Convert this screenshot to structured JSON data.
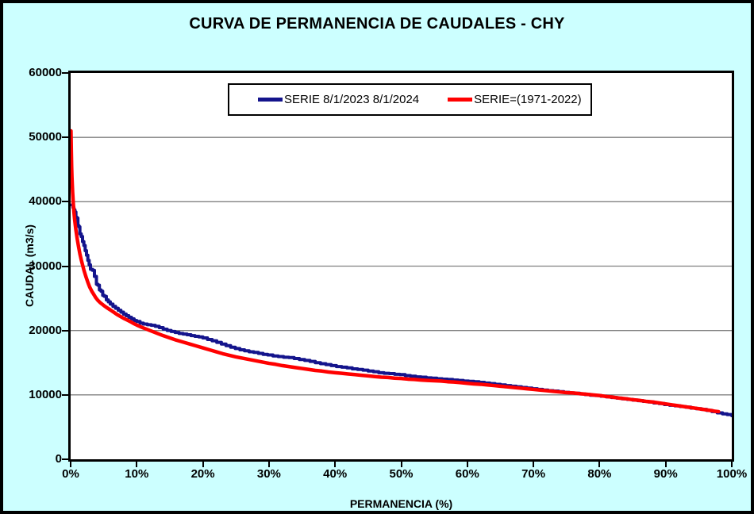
{
  "window": {
    "title": "CURVA DE PERMANENCIA DE CAUDALES - CHY"
  },
  "colors": {
    "background": "#CCFFFF",
    "plot_background": "#FFFFFF",
    "gridline": "#808080",
    "frame": "#000000",
    "series1": "#14148C",
    "series2": "#FF0000"
  },
  "chart_data": {
    "type": "line",
    "title": "CURVA DE PERMANENCIA DE CAUDALES - CHY",
    "xlabel": "PERMANENCIA (%)",
    "ylabel": "CAUDAL (m3/s)",
    "xlim": [
      0,
      100
    ],
    "ylim": [
      0,
      60000
    ],
    "x_tick_values": [
      0,
      10,
      20,
      30,
      40,
      50,
      60,
      70,
      80,
      90,
      100
    ],
    "x_tick_labels": [
      "0%",
      "10%",
      "20%",
      "30%",
      "40%",
      "50%",
      "60%",
      "70%",
      "80%",
      "90%",
      "100%"
    ],
    "y_tick_values": [
      0,
      10000,
      20000,
      30000,
      40000,
      50000,
      60000
    ],
    "y_tick_labels": [
      "0",
      "10000",
      "20000",
      "30000",
      "40000",
      "50000",
      "60000"
    ],
    "grid": "horizontal-only",
    "legend": {
      "position": "top-center",
      "entries": [
        {
          "label": "SERIE 8/1/2023 8/1/2024",
          "color": "#14148C"
        },
        {
          "label": "SERIE=(1971-2022)",
          "color": "#FF0000"
        }
      ]
    },
    "series": [
      {
        "name": "SERIE 8/1/2023 8/1/2024",
        "color": "#14148C",
        "style": "stepped",
        "stroke_width": 4,
        "points": [
          [
            0.2,
            39500
          ],
          [
            0.35,
            39100
          ],
          [
            0.5,
            38750
          ],
          [
            0.65,
            38400
          ],
          [
            0.8,
            37600
          ],
          [
            0.95,
            37450
          ],
          [
            1.1,
            36300
          ],
          [
            1.25,
            36100
          ],
          [
            1.4,
            35000
          ],
          [
            1.6,
            34600
          ],
          [
            1.8,
            33800
          ],
          [
            2.0,
            33200
          ],
          [
            2.2,
            32400
          ],
          [
            2.4,
            31700
          ],
          [
            2.6,
            30900
          ],
          [
            2.8,
            30200
          ],
          [
            3.0,
            29500
          ],
          [
            3.3,
            29350
          ],
          [
            3.6,
            28400
          ],
          [
            3.9,
            27200
          ],
          [
            4.1,
            27050
          ],
          [
            4.35,
            26300
          ],
          [
            4.6,
            26100
          ],
          [
            4.85,
            25450
          ],
          [
            5.1,
            25300
          ],
          [
            5.4,
            24750
          ],
          [
            5.7,
            24450
          ],
          [
            6.0,
            24100
          ],
          [
            6.4,
            23750
          ],
          [
            6.8,
            23450
          ],
          [
            7.2,
            23150
          ],
          [
            7.6,
            22850
          ],
          [
            8.0,
            22550
          ],
          [
            8.4,
            22300
          ],
          [
            8.8,
            22050
          ],
          [
            9.2,
            21800
          ],
          [
            9.6,
            21550
          ],
          [
            10.0,
            21400
          ],
          [
            10.5,
            21150
          ],
          [
            11.0,
            21000
          ],
          [
            11.6,
            20900
          ],
          [
            12.2,
            20800
          ],
          [
            12.8,
            20650
          ],
          [
            13.4,
            20450
          ],
          [
            14.0,
            20200
          ],
          [
            14.6,
            20000
          ],
          [
            15.2,
            19850
          ],
          [
            15.8,
            19700
          ],
          [
            16.4,
            19550
          ],
          [
            17.0,
            19450
          ],
          [
            17.6,
            19350
          ],
          [
            18.2,
            19200
          ],
          [
            18.8,
            19100
          ],
          [
            19.4,
            19000
          ],
          [
            20.0,
            18850
          ],
          [
            20.7,
            18600
          ],
          [
            21.4,
            18400
          ],
          [
            22.1,
            18150
          ],
          [
            22.8,
            17900
          ],
          [
            23.5,
            17650
          ],
          [
            24.2,
            17400
          ],
          [
            24.9,
            17200
          ],
          [
            25.6,
            17000
          ],
          [
            26.3,
            16850
          ],
          [
            27.0,
            16700
          ],
          [
            27.7,
            16600
          ],
          [
            28.4,
            16450
          ],
          [
            29.1,
            16300
          ],
          [
            29.8,
            16200
          ],
          [
            30.6,
            16050
          ],
          [
            31.4,
            15950
          ],
          [
            32.2,
            15850
          ],
          [
            33.0,
            15800
          ],
          [
            33.8,
            15650
          ],
          [
            34.6,
            15500
          ],
          [
            35.4,
            15350
          ],
          [
            36.2,
            15200
          ],
          [
            37.0,
            15000
          ],
          [
            37.8,
            14850
          ],
          [
            38.6,
            14700
          ],
          [
            39.4,
            14550
          ],
          [
            40.2,
            14400
          ],
          [
            41.0,
            14300
          ],
          [
            41.8,
            14200
          ],
          [
            42.6,
            14050
          ],
          [
            43.4,
            13950
          ],
          [
            44.2,
            13850
          ],
          [
            45.0,
            13700
          ],
          [
            45.8,
            13600
          ],
          [
            46.6,
            13450
          ],
          [
            47.4,
            13350
          ],
          [
            48.2,
            13300
          ],
          [
            49.0,
            13200
          ],
          [
            49.8,
            13150
          ],
          [
            50.6,
            13000
          ],
          [
            51.4,
            12900
          ],
          [
            52.2,
            12800
          ],
          [
            53.0,
            12750
          ],
          [
            53.8,
            12650
          ],
          [
            54.6,
            12600
          ],
          [
            55.4,
            12500
          ],
          [
            56.2,
            12450
          ],
          [
            57.0,
            12400
          ],
          [
            57.8,
            12300
          ],
          [
            58.6,
            12250
          ],
          [
            59.4,
            12150
          ],
          [
            60.2,
            12100
          ],
          [
            61.0,
            12050
          ],
          [
            61.8,
            11950
          ],
          [
            62.6,
            11850
          ],
          [
            63.4,
            11750
          ],
          [
            64.2,
            11650
          ],
          [
            65.0,
            11550
          ],
          [
            65.8,
            11450
          ],
          [
            66.6,
            11350
          ],
          [
            67.4,
            11250
          ],
          [
            68.2,
            11150
          ],
          [
            69.0,
            11050
          ],
          [
            69.8,
            10950
          ],
          [
            70.6,
            10850
          ],
          [
            71.4,
            10750
          ],
          [
            72.2,
            10650
          ],
          [
            73.0,
            10600
          ],
          [
            73.8,
            10500
          ],
          [
            74.6,
            10400
          ],
          [
            75.4,
            10300
          ],
          [
            76.2,
            10250
          ],
          [
            77.0,
            10150
          ],
          [
            77.8,
            10050
          ],
          [
            78.6,
            9950
          ],
          [
            79.4,
            9900
          ],
          [
            80.2,
            9800
          ],
          [
            81.0,
            9700
          ],
          [
            81.8,
            9600
          ],
          [
            82.6,
            9500
          ],
          [
            83.4,
            9400
          ],
          [
            84.2,
            9300
          ],
          [
            85.0,
            9200
          ],
          [
            85.8,
            9100
          ],
          [
            86.6,
            9000
          ],
          [
            87.4,
            8900
          ],
          [
            88.2,
            8750
          ],
          [
            89.0,
            8650
          ],
          [
            89.8,
            8500
          ],
          [
            90.6,
            8400
          ],
          [
            91.4,
            8300
          ],
          [
            92.2,
            8200
          ],
          [
            93.0,
            8100
          ],
          [
            93.8,
            7950
          ],
          [
            94.6,
            7850
          ],
          [
            95.4,
            7750
          ],
          [
            96.2,
            7600
          ],
          [
            97.0,
            7400
          ],
          [
            97.8,
            7200
          ],
          [
            98.6,
            7050
          ],
          [
            99.3,
            6950
          ],
          [
            100.0,
            6780
          ]
        ]
      },
      {
        "name": "SERIE=(1971-2022)",
        "color": "#FF0000",
        "style": "smooth",
        "stroke_width": 4.5,
        "points": [
          [
            0.05,
            51000
          ],
          [
            0.1,
            48000
          ],
          [
            0.15,
            45500
          ],
          [
            0.2,
            43800
          ],
          [
            0.3,
            41500
          ],
          [
            0.4,
            39800
          ],
          [
            0.5,
            38400
          ],
          [
            0.6,
            37300
          ],
          [
            0.7,
            36400
          ],
          [
            0.8,
            35600
          ],
          [
            1.0,
            34200
          ],
          [
            1.2,
            33000
          ],
          [
            1.4,
            31900
          ],
          [
            1.6,
            31000
          ],
          [
            1.8,
            30200
          ],
          [
            2.0,
            29400
          ],
          [
            2.3,
            28400
          ],
          [
            2.6,
            27500
          ],
          [
            2.9,
            26700
          ],
          [
            3.2,
            26100
          ],
          [
            3.5,
            25600
          ],
          [
            3.8,
            25100
          ],
          [
            4.1,
            24700
          ],
          [
            4.5,
            24300
          ],
          [
            5.0,
            23900
          ],
          [
            5.4,
            23600
          ],
          [
            6.0,
            23200
          ],
          [
            6.5,
            22850
          ],
          [
            7.0,
            22500
          ],
          [
            7.5,
            22200
          ],
          [
            8.0,
            21900
          ],
          [
            8.5,
            21650
          ],
          [
            9.0,
            21400
          ],
          [
            9.5,
            21100
          ],
          [
            10.0,
            20850
          ],
          [
            11.0,
            20400
          ],
          [
            12.0,
            20000
          ],
          [
            13.0,
            19600
          ],
          [
            14.0,
            19200
          ],
          [
            15.0,
            18850
          ],
          [
            16.0,
            18500
          ],
          [
            17.0,
            18200
          ],
          [
            18.0,
            17900
          ],
          [
            19.0,
            17600
          ],
          [
            20.0,
            17300
          ],
          [
            21.0,
            17000
          ],
          [
            22.0,
            16700
          ],
          [
            23.0,
            16400
          ],
          [
            24.0,
            16150
          ],
          [
            25.0,
            15900
          ],
          [
            26.0,
            15700
          ],
          [
            27.0,
            15500
          ],
          [
            28.0,
            15300
          ],
          [
            29.0,
            15100
          ],
          [
            30.0,
            14900
          ],
          [
            31.0,
            14750
          ],
          [
            32.0,
            14550
          ],
          [
            33.0,
            14400
          ],
          [
            34.0,
            14250
          ],
          [
            35.0,
            14100
          ],
          [
            36.0,
            13950
          ],
          [
            37.0,
            13800
          ],
          [
            38.0,
            13700
          ],
          [
            39.0,
            13550
          ],
          [
            40.0,
            13450
          ],
          [
            41.0,
            13350
          ],
          [
            42.0,
            13250
          ],
          [
            43.0,
            13150
          ],
          [
            44.0,
            13050
          ],
          [
            45.0,
            12950
          ],
          [
            46.0,
            12850
          ],
          [
            47.0,
            12750
          ],
          [
            48.0,
            12700
          ],
          [
            49.0,
            12600
          ],
          [
            50.0,
            12550
          ],
          [
            51.0,
            12450
          ],
          [
            52.0,
            12400
          ],
          [
            53.0,
            12300
          ],
          [
            54.0,
            12250
          ],
          [
            55.0,
            12200
          ],
          [
            56.0,
            12150
          ],
          [
            57.0,
            12050
          ],
          [
            58.0,
            12000
          ],
          [
            59.0,
            11900
          ],
          [
            60.0,
            11800
          ],
          [
            61.0,
            11700
          ],
          [
            62.0,
            11650
          ],
          [
            63.0,
            11550
          ],
          [
            64.0,
            11450
          ],
          [
            65.0,
            11350
          ],
          [
            66.0,
            11250
          ],
          [
            67.0,
            11150
          ],
          [
            68.0,
            11050
          ],
          [
            69.0,
            10950
          ],
          [
            70.0,
            10850
          ],
          [
            71.0,
            10750
          ],
          [
            72.0,
            10650
          ],
          [
            73.0,
            10550
          ],
          [
            74.0,
            10450
          ],
          [
            75.0,
            10350
          ],
          [
            76.0,
            10300
          ],
          [
            77.0,
            10200
          ],
          [
            78.0,
            10100
          ],
          [
            79.0,
            10000
          ],
          [
            80.0,
            9900
          ],
          [
            81.0,
            9750
          ],
          [
            82.0,
            9650
          ],
          [
            83.0,
            9500
          ],
          [
            84.0,
            9400
          ],
          [
            85.0,
            9250
          ],
          [
            86.0,
            9150
          ],
          [
            87.0,
            9000
          ],
          [
            88.0,
            8900
          ],
          [
            89.0,
            8750
          ],
          [
            90.0,
            8600
          ],
          [
            91.0,
            8450
          ],
          [
            92.0,
            8300
          ],
          [
            93.0,
            8150
          ],
          [
            94.0,
            8000
          ],
          [
            95.0,
            7850
          ],
          [
            96.0,
            7700
          ],
          [
            97.0,
            7550
          ],
          [
            97.5,
            7450
          ],
          [
            98.0,
            7400
          ]
        ]
      }
    ]
  }
}
